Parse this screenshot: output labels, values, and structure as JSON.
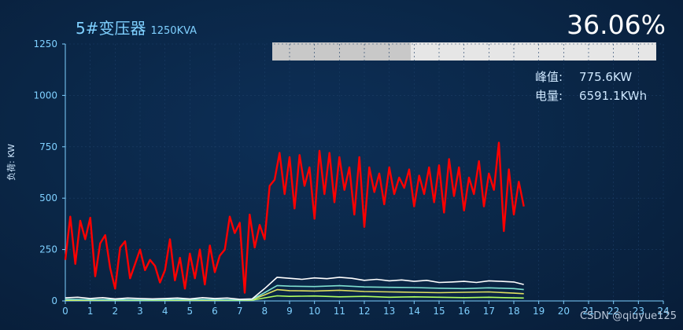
{
  "header": {
    "title": "5#变压器",
    "capacity": "1250KVA",
    "load_percent": "36.06%",
    "load_fraction": 0.3606
  },
  "stats": {
    "peak_label": "峰值:",
    "peak_value": "775.6KW",
    "energy_label": "电量:",
    "energy_value": "6591.1KWh"
  },
  "watermark": "CSDN @qiuyue125",
  "colors": {
    "background": "#0a2444",
    "title": "#7fd0ff",
    "axis": "#7fd0ff",
    "series_total": "#ff0000",
    "series_a": "#ffffff",
    "series_b": "#7fe0d0",
    "series_c": "#e0e060",
    "series_d": "#b0ff60",
    "bar": "#c8c8c8"
  },
  "chart_data": {
    "type": "line",
    "title": "",
    "xlabel": "",
    "ylabel": "负荷: KW",
    "xlim": [
      0,
      24
    ],
    "ylim": [
      0,
      1250
    ],
    "xticks": [
      "0",
      "1",
      "2",
      "3",
      "4",
      "5",
      "6",
      "7",
      "8",
      "9",
      "10",
      "11",
      "12",
      "13",
      "14",
      "15",
      "16",
      "17",
      "18",
      "19",
      "20",
      "21",
      "22",
      "23",
      "24"
    ],
    "yticks": [
      "0",
      "250",
      "500",
      "750",
      "1000",
      "1250"
    ],
    "grid": true,
    "legend": "none",
    "series": [
      {
        "color": "#ff0000",
        "x": [
          0,
          0.2,
          0.4,
          0.6,
          0.8,
          1.0,
          1.2,
          1.4,
          1.6,
          1.8,
          2.0,
          2.2,
          2.4,
          2.6,
          2.8,
          3.0,
          3.2,
          3.4,
          3.6,
          3.8,
          4.0,
          4.2,
          4.4,
          4.6,
          4.8,
          5.0,
          5.2,
          5.4,
          5.6,
          5.8,
          6.0,
          6.2,
          6.4,
          6.6,
          6.8,
          7.0,
          7.2,
          7.4,
          7.6,
          7.8,
          8.0,
          8.2,
          8.4,
          8.6,
          8.8,
          9.0,
          9.2,
          9.4,
          9.6,
          9.8,
          10.0,
          10.2,
          10.4,
          10.6,
          10.8,
          11.0,
          11.2,
          11.4,
          11.6,
          11.8,
          12.0,
          12.2,
          12.4,
          12.6,
          12.8,
          13.0,
          13.2,
          13.4,
          13.6,
          13.8,
          14.0,
          14.2,
          14.4,
          14.6,
          14.8,
          15.0,
          15.2,
          15.4,
          15.6,
          15.8,
          16.0,
          16.2,
          16.4,
          16.6,
          16.8,
          17.0,
          17.2,
          17.4,
          17.6,
          17.8,
          18.0,
          18.2,
          18.4
        ],
        "values": [
          200,
          410,
          180,
          390,
          300,
          405,
          120,
          280,
          320,
          160,
          60,
          260,
          290,
          110,
          180,
          250,
          150,
          200,
          170,
          90,
          150,
          300,
          100,
          210,
          60,
          230,
          110,
          250,
          80,
          270,
          140,
          220,
          250,
          410,
          330,
          380,
          40,
          420,
          260,
          370,
          300,
          560,
          590,
          720,
          520,
          700,
          450,
          710,
          560,
          650,
          400,
          730,
          520,
          720,
          480,
          700,
          540,
          650,
          420,
          700,
          360,
          650,
          530,
          620,
          470,
          650,
          520,
          600,
          550,
          640,
          460,
          610,
          520,
          650,
          480,
          660,
          430,
          690,
          510,
          650,
          440,
          600,
          520,
          680,
          460,
          620,
          540,
          770,
          340,
          640,
          420,
          580,
          460
        ]
      },
      {
        "color": "#ffffff",
        "x": [
          0,
          0.5,
          1,
          1.5,
          2,
          2.5,
          3,
          3.5,
          4,
          4.5,
          5,
          5.5,
          6,
          6.5,
          7,
          7.5,
          8,
          8.5,
          9,
          9.5,
          10,
          10.5,
          11,
          11.5,
          12,
          12.5,
          13,
          13.5,
          14,
          14.5,
          15,
          15.5,
          16,
          16.5,
          17,
          17.5,
          18,
          18.4
        ],
        "values": [
          15,
          18,
          12,
          16,
          10,
          14,
          12,
          10,
          12,
          14,
          10,
          16,
          12,
          14,
          8,
          10,
          60,
          115,
          110,
          105,
          112,
          108,
          115,
          110,
          100,
          105,
          98,
          102,
          95,
          100,
          90,
          92,
          95,
          90,
          98,
          95,
          92,
          80
        ]
      },
      {
        "color": "#7fe0d0",
        "x": [
          0,
          1,
          2,
          3,
          4,
          5,
          6,
          7,
          7.5,
          8,
          8.5,
          9,
          10,
          11,
          12,
          13,
          14,
          15,
          16,
          17,
          18,
          18.4
        ],
        "values": [
          8,
          6,
          7,
          5,
          6,
          8,
          6,
          5,
          8,
          40,
          75,
          72,
          70,
          74,
          68,
          66,
          65,
          62,
          60,
          64,
          60,
          55
        ]
      },
      {
        "color": "#e0e060",
        "x": [
          0,
          1,
          2,
          3,
          4,
          5,
          6,
          7,
          7.5,
          8,
          8.5,
          9,
          10,
          11,
          12,
          13,
          14,
          15,
          16,
          17,
          18,
          18.4
        ],
        "values": [
          5,
          4,
          6,
          4,
          5,
          6,
          4,
          5,
          6,
          30,
          55,
          50,
          48,
          52,
          46,
          44,
          42,
          40,
          42,
          44,
          38,
          35
        ]
      },
      {
        "color": "#b0ff60",
        "x": [
          0,
          1,
          2,
          3,
          4,
          5,
          6,
          7,
          7.5,
          8,
          8.5,
          9,
          10,
          11,
          12,
          13,
          14,
          15,
          16,
          17,
          18,
          18.4
        ],
        "values": [
          3,
          3,
          4,
          3,
          3,
          4,
          3,
          3,
          4,
          15,
          25,
          22,
          24,
          20,
          22,
          18,
          20,
          18,
          16,
          18,
          15,
          14
        ]
      }
    ]
  }
}
